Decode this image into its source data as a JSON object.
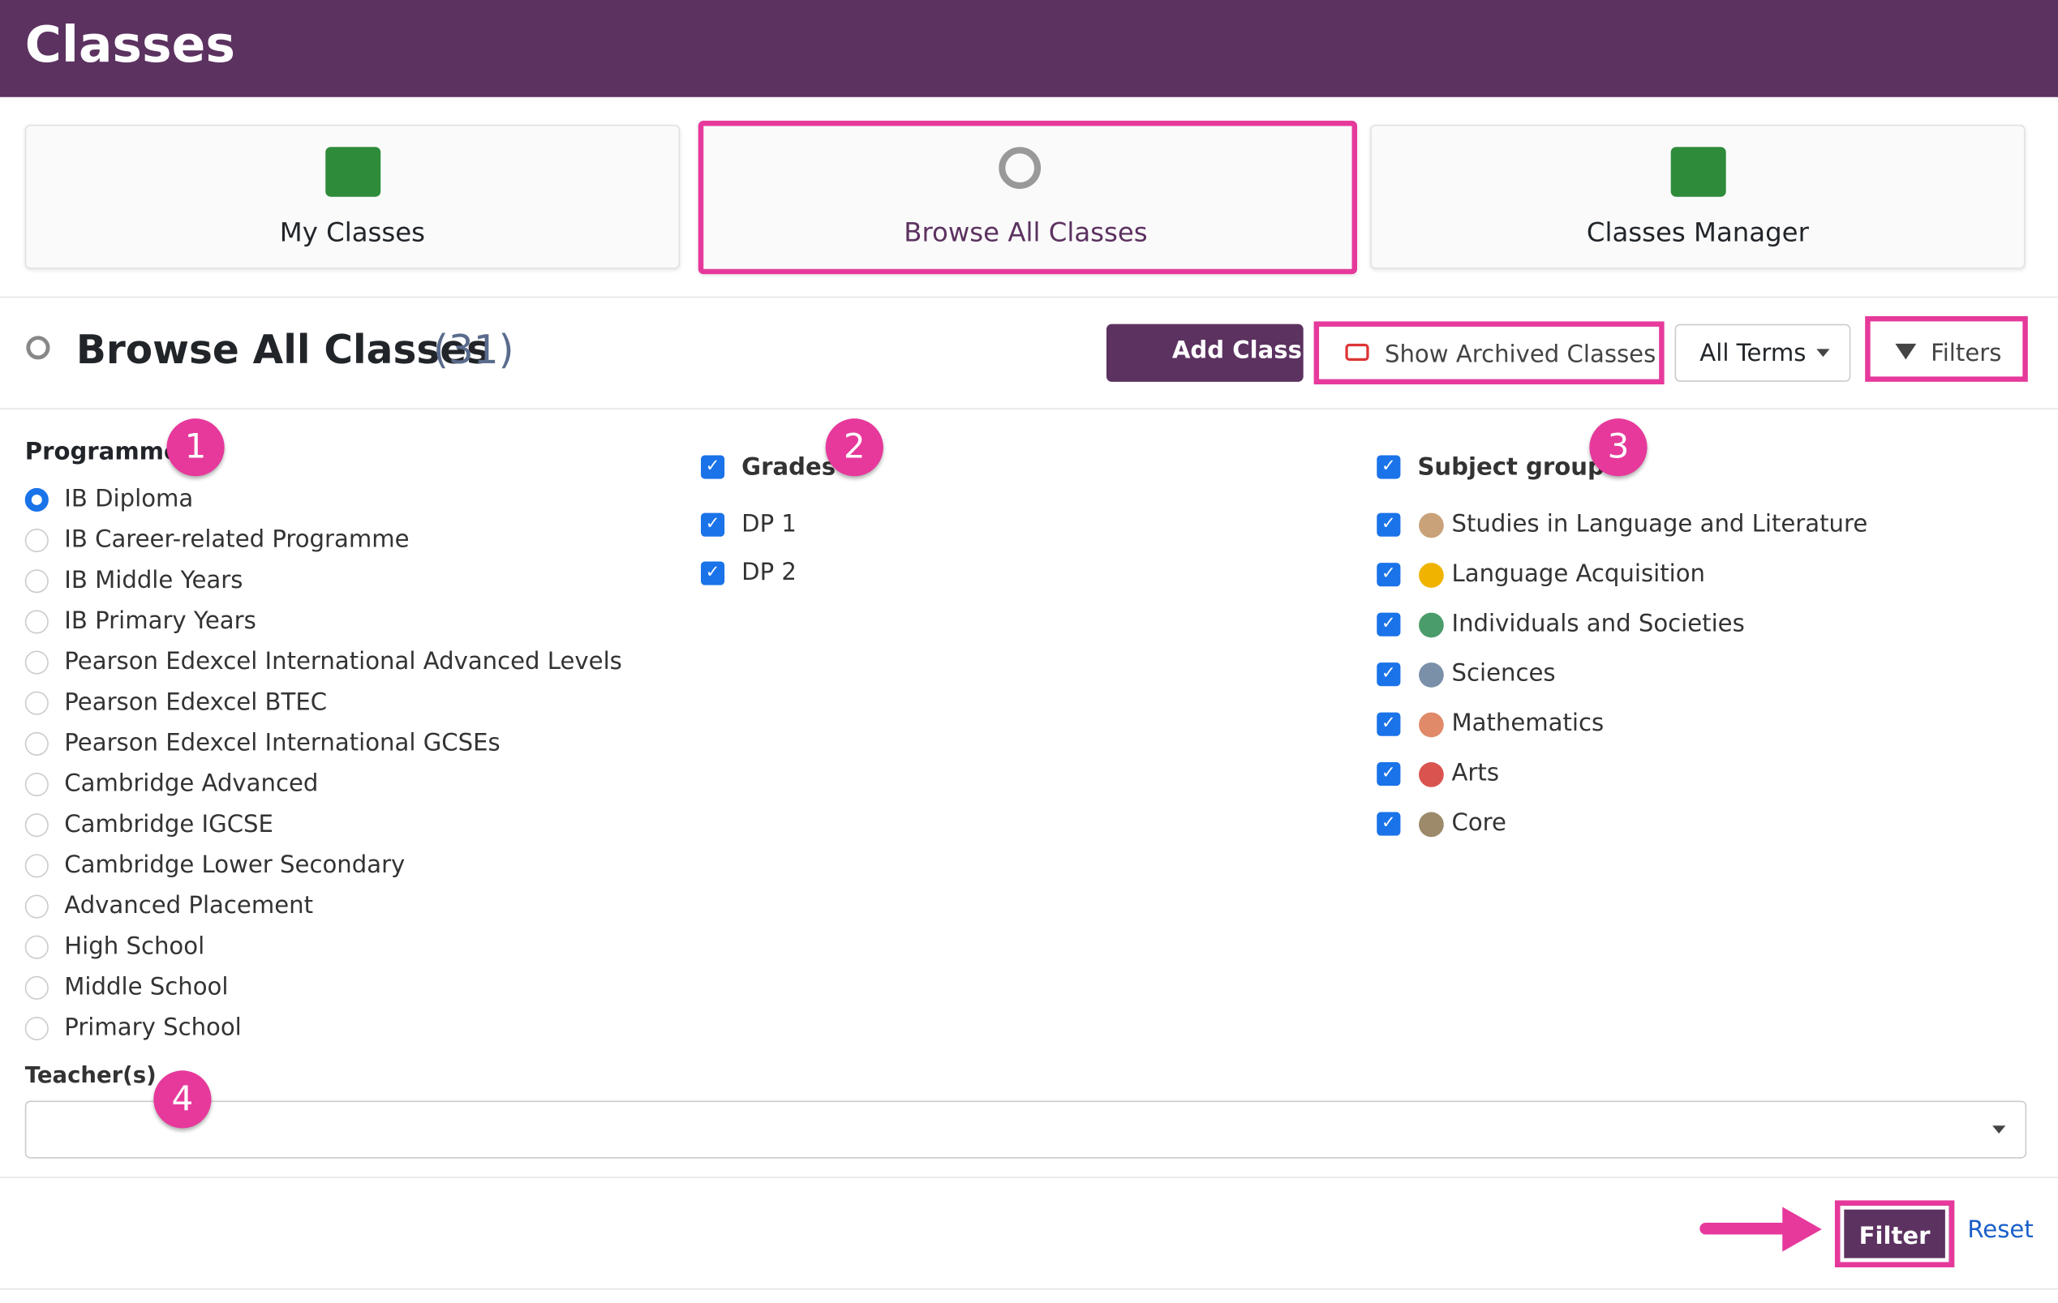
{
  "header": {
    "title": "Classes"
  },
  "tabs": [
    {
      "label": "My Classes"
    },
    {
      "label": "Browse All Classes"
    },
    {
      "label": "Classes Manager"
    }
  ],
  "section": {
    "title": "Browse All Classes",
    "count": "(31)"
  },
  "toolbar": {
    "add_class": "Add Class",
    "show_archived": "Show Archived Classes",
    "terms": "All Terms",
    "filters": "Filters"
  },
  "programme": {
    "label": "Programme",
    "options": [
      "IB Diploma",
      "IB Career-related Programme",
      "IB Middle Years",
      "IB Primary Years",
      "Pearson Edexcel International Advanced Levels",
      "Pearson Edexcel BTEC",
      "Pearson Edexcel International GCSEs",
      "Cambridge Advanced",
      "Cambridge IGCSE",
      "Cambridge Lower Secondary",
      "Advanced Placement",
      "High School",
      "Middle School",
      "Primary School"
    ]
  },
  "grades": {
    "label": "Grades",
    "options": [
      "DP 1",
      "DP 2"
    ]
  },
  "subject_group": {
    "label": "Subject group",
    "options": [
      "Studies in Language and Literature",
      "Language Acquisition",
      "Individuals and Societies",
      "Sciences",
      "Mathematics",
      "Arts",
      "Core"
    ]
  },
  "teachers": {
    "label": "Teacher(s)"
  },
  "actions": {
    "filter": "Filter",
    "reset": "Reset"
  },
  "annotations": [
    "1",
    "2",
    "3",
    "4"
  ]
}
